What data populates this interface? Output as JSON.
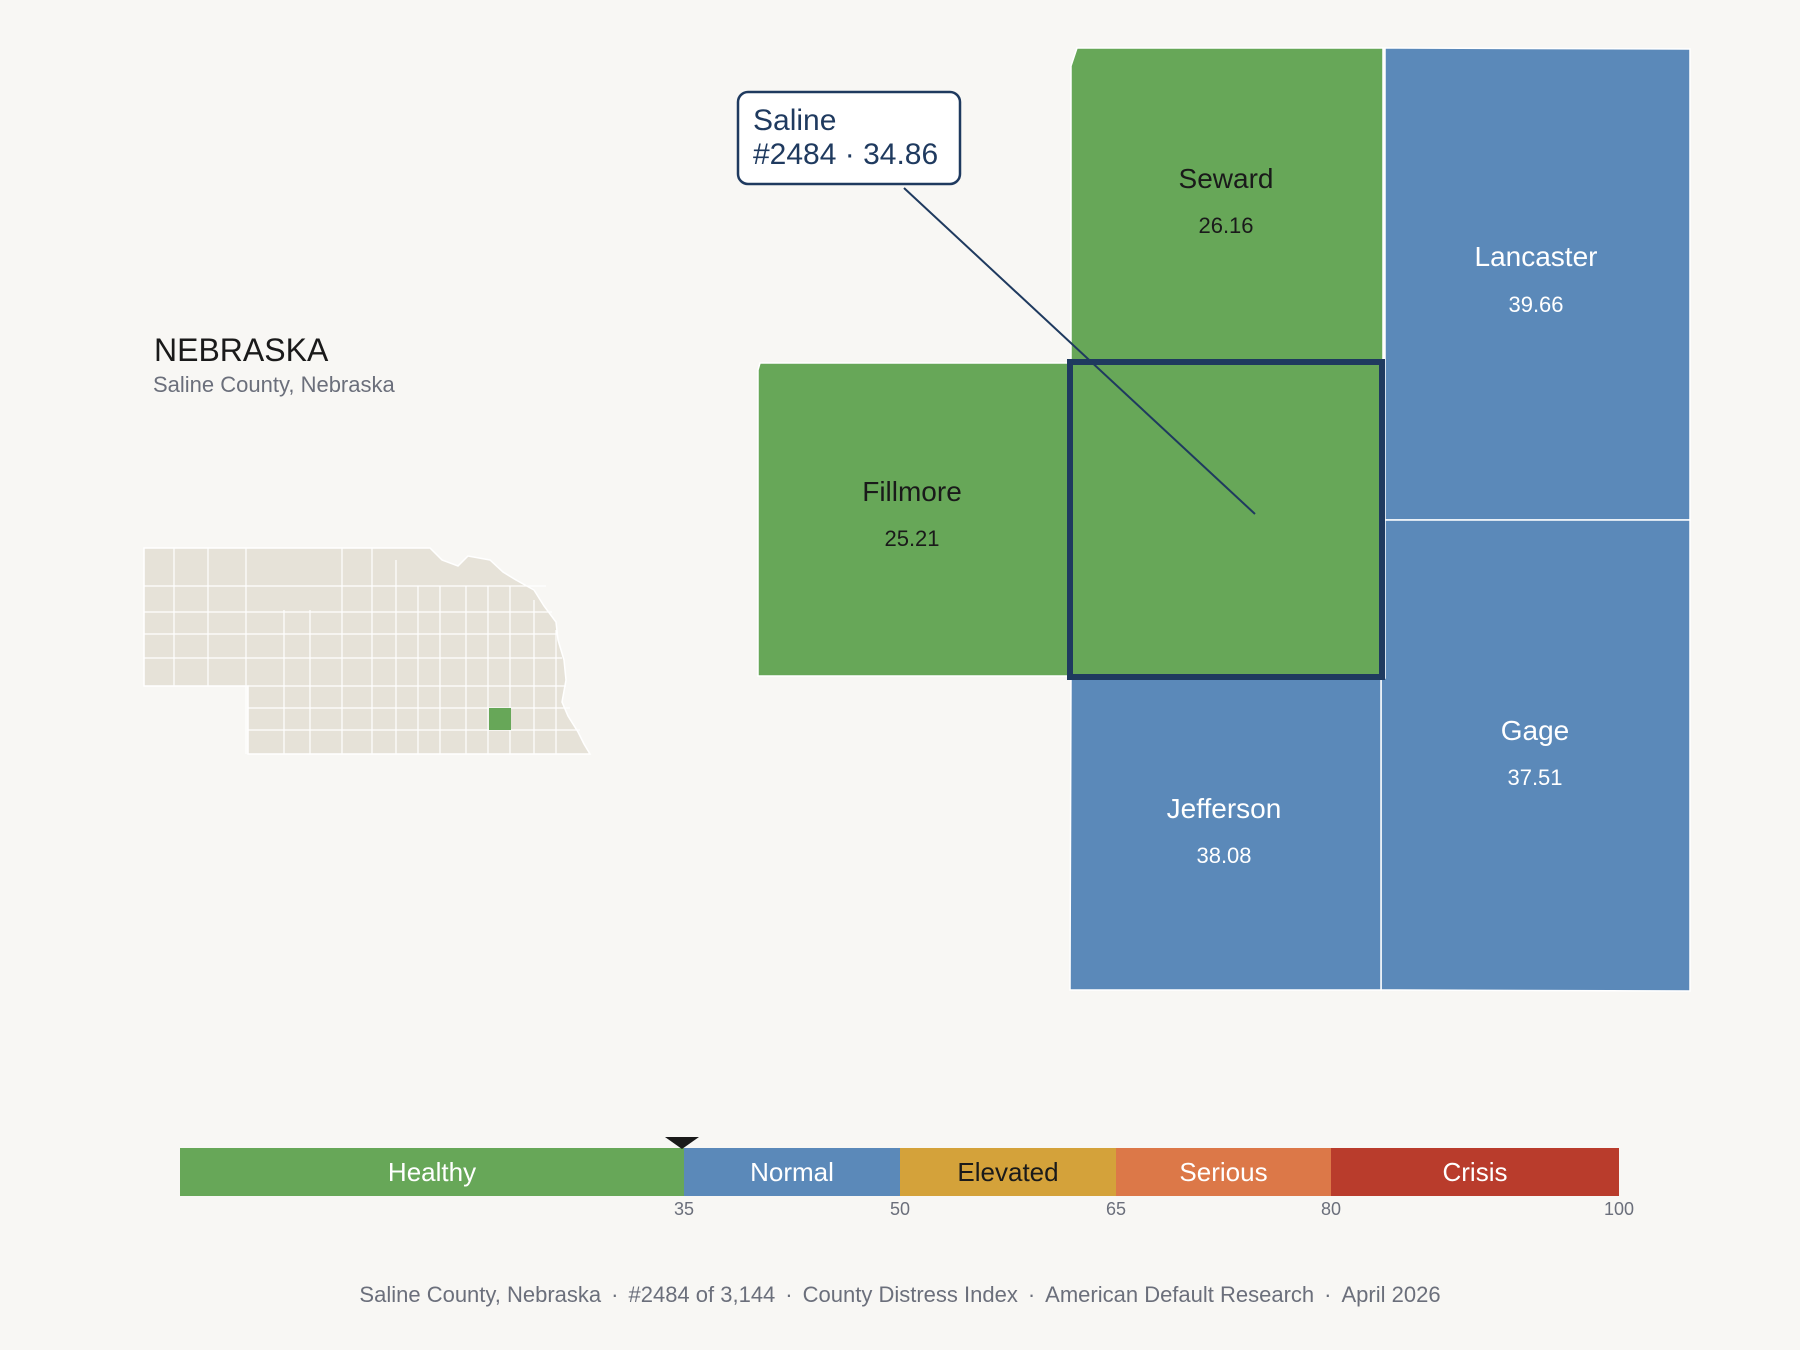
{
  "state": {
    "title": "NEBRASKA",
    "subtitle": "Saline County, Nebraska"
  },
  "callout": {
    "line1": "Saline",
    "line2": "#2484 · 34.86"
  },
  "counties": {
    "seward": {
      "name": "Seward",
      "value": "26.16"
    },
    "lancaster": {
      "name": "Lancaster",
      "value": "39.66"
    },
    "fillmore": {
      "name": "Fillmore",
      "value": "25.21"
    },
    "saline": {
      "name": "Saline",
      "value": "34.86"
    },
    "jefferson": {
      "name": "Jefferson",
      "value": "38.08"
    },
    "gage": {
      "name": "Gage",
      "value": "37.51"
    }
  },
  "legend": {
    "bands": [
      {
        "label": "Healthy",
        "from": 0,
        "to": 35,
        "color": "#67a758"
      },
      {
        "label": "Normal",
        "from": 35,
        "to": 50,
        "color": "#5b89b9"
      },
      {
        "label": "Elevated",
        "from": 50,
        "to": 65,
        "color": "#d4a23a"
      },
      {
        "label": "Serious",
        "from": 65,
        "to": 80,
        "color": "#dc7848"
      },
      {
        "label": "Crisis",
        "from": 80,
        "to": 100,
        "color": "#b93c2c"
      }
    ],
    "ticks": [
      "35",
      "50",
      "65",
      "80",
      "100"
    ],
    "marker_value": 34.86
  },
  "footer": {
    "parts": [
      "Saline County, Nebraska",
      "#2484 of 3,144",
      "County Distress Index",
      "American Default Research",
      "April 2026"
    ]
  },
  "colors": {
    "healthy": "#67a758",
    "normal": "#5b89b9",
    "highlight_border": "#1f3a5f",
    "inset_fill": "#e6e2d8",
    "inset_stroke": "#ffffff"
  }
}
